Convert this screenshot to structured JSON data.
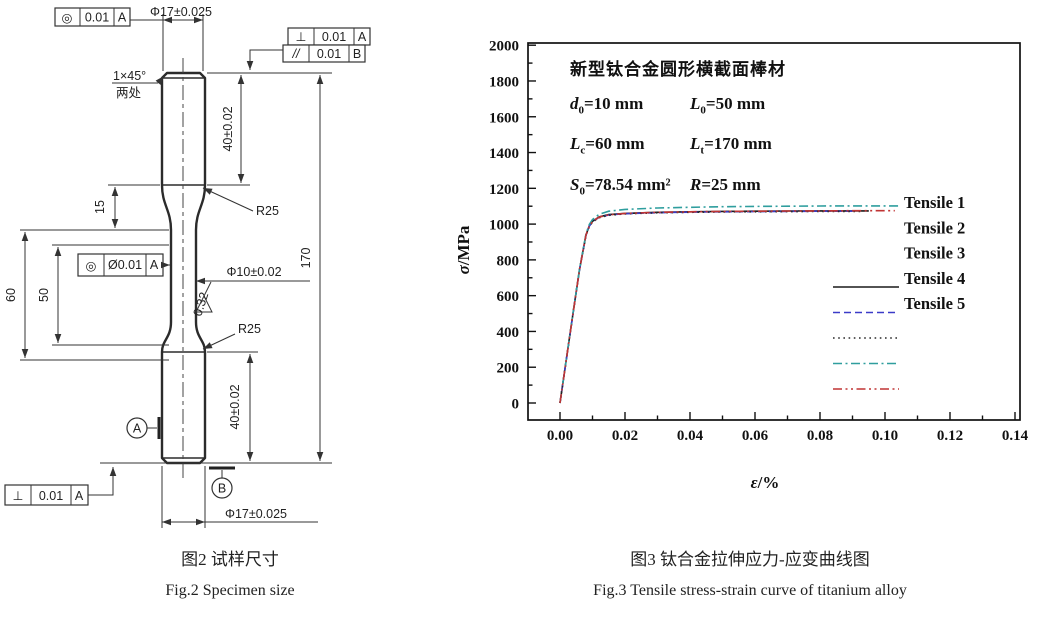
{
  "fig2": {
    "caption_zh": "图2 试样尺寸",
    "caption_en": "Fig.2 Specimen size",
    "gdt": {
      "top_left": {
        "sym": "◎",
        "tol": "0.01",
        "datum": "A"
      },
      "top_right_1": {
        "sym": "⊥",
        "tol": "0.01",
        "datum": "A"
      },
      "top_right_2": {
        "sym": "//",
        "tol": "0.01",
        "datum": "B"
      },
      "middle": {
        "sym": "◎",
        "tol": "Ø0.01",
        "datum": "A"
      },
      "bottom_left": {
        "sym": "⊥",
        "tol": "0.01",
        "datum": "A"
      }
    },
    "dims": {
      "top_diameter": "Φ17±0.025",
      "bottom_diameter": "Φ17±0.025",
      "upper_grip_length": "40±0.02",
      "lower_grip_length": "40±0.02",
      "shoulder": "15",
      "parallel_length": "60",
      "gauge_length": "50",
      "total_length": "170",
      "gauge_diameter": "Φ10±0.02",
      "fillet_radius_upper": "R25",
      "fillet_radius_lower": "R25",
      "surface_roughness": "0.32",
      "chamfer": "1×45°",
      "chamfer_note": "两处",
      "datum_a": "A",
      "datum_b": "B"
    }
  },
  "fig3": {
    "caption_zh": "图3 钛合金拉伸应力-应变曲线图",
    "caption_en": "Fig.3 Tensile stress-strain curve of titanium alloy"
  },
  "chart_data": {
    "type": "line",
    "title": "",
    "xlabel_sym": "ε",
    "xlabel_rest": "/%",
    "ylabel_sym": "σ",
    "ylabel_rest": "/MPa",
    "xlim": [
      -0.01,
      0.142
    ],
    "ylim": [
      -95,
      2010
    ],
    "x_ticks": [
      0.0,
      0.02,
      0.04,
      0.06,
      0.08,
      0.1,
      0.12,
      0.14
    ],
    "y_ticks": [
      0,
      200,
      400,
      600,
      800,
      1000,
      1200,
      1400,
      1600,
      1800,
      2000
    ],
    "grid": false,
    "legend_position": "right",
    "annotation": {
      "title": "新型钛合金圆形横截面棒材",
      "params": [
        [
          {
            "sym": "d",
            "sub": "0",
            "rest": "=10 mm"
          },
          {
            "sym": "L",
            "sub": "0",
            "rest": "=50 mm"
          }
        ],
        [
          {
            "sym": "L",
            "sub": "c",
            "rest": "=60 mm"
          },
          {
            "sym": "L",
            "sub": "t",
            "rest": "=170 mm"
          }
        ],
        [
          {
            "sym": "S",
            "sub": "0",
            "rest": "=78.54 mm²"
          },
          {
            "sym": "R",
            "sub": "",
            "rest": "=25 mm"
          }
        ]
      ]
    },
    "series": [
      {
        "name": "Tensile 1",
        "color": "#1a1a1a",
        "style": "solid",
        "x": [
          0,
          0.002,
          0.004,
          0.006,
          0.008,
          0.009,
          0.01,
          0.012,
          0.015,
          0.02,
          0.03,
          0.04,
          0.05,
          0.06,
          0.07,
          0.08,
          0.09,
          0.095
        ],
        "y": [
          0,
          250,
          500,
          745,
          940,
          990,
          1015,
          1040,
          1053,
          1060,
          1066,
          1069,
          1071,
          1072,
          1073,
          1074,
          1074,
          1074
        ]
      },
      {
        "name": "Tensile 2",
        "color": "#3b3bc8",
        "style": "dash",
        "x": [
          0,
          0.002,
          0.004,
          0.006,
          0.008,
          0.009,
          0.01,
          0.012,
          0.015,
          0.02,
          0.03,
          0.04,
          0.05,
          0.06,
          0.07,
          0.08,
          0.09
        ],
        "y": [
          0,
          250,
          500,
          745,
          938,
          988,
          1013,
          1038,
          1051,
          1058,
          1064,
          1067,
          1069,
          1070,
          1071,
          1072,
          1072
        ]
      },
      {
        "name": "Tensile 3",
        "color": "#2a2a2a",
        "style": "dot",
        "x": [
          0,
          0.002,
          0.004,
          0.006,
          0.008,
          0.009,
          0.01,
          0.012,
          0.015,
          0.02,
          0.03,
          0.04,
          0.05,
          0.06,
          0.07,
          0.08,
          0.09,
          0.093
        ],
        "y": [
          0,
          250,
          500,
          745,
          936,
          986,
          1011,
          1036,
          1049,
          1057,
          1063,
          1066,
          1068,
          1069,
          1070,
          1071,
          1071,
          1071
        ]
      },
      {
        "name": "Tensile 4",
        "color": "#2f9e9e",
        "style": "dashdot",
        "x": [
          0,
          0.002,
          0.004,
          0.006,
          0.008,
          0.009,
          0.01,
          0.012,
          0.015,
          0.02,
          0.03,
          0.04,
          0.05,
          0.06,
          0.07,
          0.08,
          0.09,
          0.1,
          0.105
        ],
        "y": [
          0,
          252,
          503,
          748,
          945,
          998,
          1025,
          1055,
          1072,
          1082,
          1090,
          1094,
          1097,
          1099,
          1100,
          1101,
          1102,
          1102,
          1102
        ]
      },
      {
        "name": "Tensile 5",
        "color": "#c03434",
        "style": "dashdotdot",
        "x": [
          0,
          0.002,
          0.004,
          0.006,
          0.008,
          0.009,
          0.01,
          0.012,
          0.015,
          0.02,
          0.03,
          0.04,
          0.05,
          0.06,
          0.07,
          0.08,
          0.09,
          0.1,
          0.103
        ],
        "y": [
          0,
          250,
          500,
          745,
          940,
          990,
          1014,
          1039,
          1052,
          1060,
          1066,
          1069,
          1071,
          1072,
          1073,
          1074,
          1075,
          1075,
          1075
        ]
      }
    ]
  }
}
